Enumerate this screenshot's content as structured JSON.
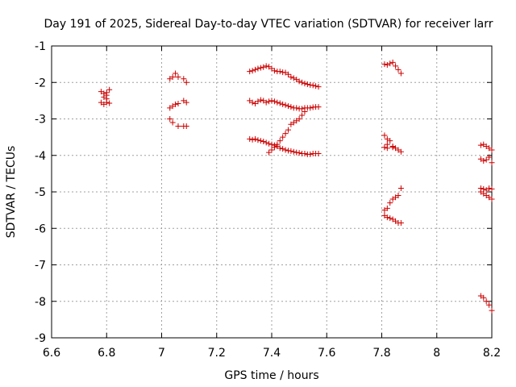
{
  "chart_data": {
    "type": "scatter",
    "title": "Day 191 of 2025, Sidereal Day-to-day VTEC variation (SDTVAR) for receiver larr",
    "xlabel": "GPS time / hours",
    "ylabel": "SDTVAR / TECUs",
    "xlim": [
      6.6,
      8.2
    ],
    "ylim": [
      -9,
      -1
    ],
    "xticks": [
      6.6,
      6.8,
      7,
      7.2,
      7.4,
      7.6,
      7.8,
      8,
      8.2
    ],
    "xtick_labels": [
      "6.6",
      "6.8",
      "7",
      "7.2",
      "7.4",
      "7.6",
      "7.8",
      "8",
      "8.2"
    ],
    "yticks": [
      -9,
      -8,
      -7,
      -6,
      -5,
      -4,
      -3,
      -2,
      -1
    ],
    "ytick_labels": [
      "-9",
      "-8",
      "-7",
      "-6",
      "-5",
      "-4",
      "-3",
      "-2",
      "-1"
    ],
    "grid": true,
    "marker": "+",
    "series": [
      {
        "name": "SDTVAR",
        "color": "#cc0000",
        "points": [
          [
            6.78,
            -2.25
          ],
          [
            6.79,
            -2.3
          ],
          [
            6.8,
            -2.28
          ],
          [
            6.81,
            -2.2
          ],
          [
            6.8,
            -2.35
          ],
          [
            6.79,
            -2.4
          ],
          [
            6.8,
            -2.45
          ],
          [
            6.8,
            -2.55
          ],
          [
            6.78,
            -2.55
          ],
          [
            6.81,
            -2.57
          ],
          [
            6.79,
            -2.6
          ],
          [
            7.03,
            -1.9
          ],
          [
            7.04,
            -1.85
          ],
          [
            7.05,
            -1.75
          ],
          [
            7.06,
            -1.85
          ],
          [
            7.08,
            -1.9
          ],
          [
            7.09,
            -2.0
          ],
          [
            7.03,
            -2.7
          ],
          [
            7.04,
            -2.65
          ],
          [
            7.05,
            -2.6
          ],
          [
            7.06,
            -2.58
          ],
          [
            7.08,
            -2.5
          ],
          [
            7.09,
            -2.55
          ],
          [
            7.03,
            -3.0
          ],
          [
            7.04,
            -3.1
          ],
          [
            7.06,
            -3.2
          ],
          [
            7.08,
            -3.2
          ],
          [
            7.09,
            -3.2
          ],
          [
            7.32,
            -1.7
          ],
          [
            7.33,
            -1.68
          ],
          [
            7.34,
            -1.65
          ],
          [
            7.35,
            -1.62
          ],
          [
            7.36,
            -1.6
          ],
          [
            7.37,
            -1.58
          ],
          [
            7.38,
            -1.55
          ],
          [
            7.39,
            -1.57
          ],
          [
            7.4,
            -1.62
          ],
          [
            7.41,
            -1.68
          ],
          [
            7.42,
            -1.7
          ],
          [
            7.43,
            -1.7
          ],
          [
            7.44,
            -1.72
          ],
          [
            7.45,
            -1.73
          ],
          [
            7.46,
            -1.78
          ],
          [
            7.47,
            -1.85
          ],
          [
            7.48,
            -1.88
          ],
          [
            7.49,
            -1.92
          ],
          [
            7.5,
            -1.97
          ],
          [
            7.51,
            -2.0
          ],
          [
            7.52,
            -2.03
          ],
          [
            7.53,
            -2.05
          ],
          [
            7.54,
            -2.07
          ],
          [
            7.55,
            -2.08
          ],
          [
            7.56,
            -2.1
          ],
          [
            7.57,
            -2.12
          ],
          [
            7.32,
            -2.5
          ],
          [
            7.33,
            -2.55
          ],
          [
            7.34,
            -2.58
          ],
          [
            7.35,
            -2.52
          ],
          [
            7.36,
            -2.48
          ],
          [
            7.37,
            -2.5
          ],
          [
            7.38,
            -2.55
          ],
          [
            7.39,
            -2.52
          ],
          [
            7.4,
            -2.5
          ],
          [
            7.41,
            -2.52
          ],
          [
            7.42,
            -2.55
          ],
          [
            7.43,
            -2.57
          ],
          [
            7.44,
            -2.6
          ],
          [
            7.45,
            -2.62
          ],
          [
            7.46,
            -2.65
          ],
          [
            7.47,
            -2.67
          ],
          [
            7.48,
            -2.7
          ],
          [
            7.49,
            -2.7
          ],
          [
            7.5,
            -2.72
          ],
          [
            7.51,
            -2.72
          ],
          [
            7.52,
            -2.7
          ],
          [
            7.53,
            -2.7
          ],
          [
            7.54,
            -2.7
          ],
          [
            7.55,
            -2.68
          ],
          [
            7.56,
            -2.67
          ],
          [
            7.57,
            -2.67
          ],
          [
            7.32,
            -3.55
          ],
          [
            7.33,
            -3.57
          ],
          [
            7.34,
            -3.55
          ],
          [
            7.35,
            -3.58
          ],
          [
            7.36,
            -3.6
          ],
          [
            7.37,
            -3.62
          ],
          [
            7.38,
            -3.65
          ],
          [
            7.39,
            -3.68
          ],
          [
            7.4,
            -3.7
          ],
          [
            7.41,
            -3.72
          ],
          [
            7.42,
            -3.75
          ],
          [
            7.43,
            -3.8
          ],
          [
            7.44,
            -3.82
          ],
          [
            7.45,
            -3.85
          ],
          [
            7.46,
            -3.87
          ],
          [
            7.47,
            -3.88
          ],
          [
            7.48,
            -3.9
          ],
          [
            7.49,
            -3.92
          ],
          [
            7.5,
            -3.93
          ],
          [
            7.51,
            -3.95
          ],
          [
            7.52,
            -3.95
          ],
          [
            7.53,
            -3.97
          ],
          [
            7.54,
            -3.97
          ],
          [
            7.55,
            -3.95
          ],
          [
            7.56,
            -3.95
          ],
          [
            7.57,
            -3.95
          ],
          [
            7.39,
            -3.92
          ],
          [
            7.4,
            -3.85
          ],
          [
            7.41,
            -3.78
          ],
          [
            7.42,
            -3.7
          ],
          [
            7.43,
            -3.6
          ],
          [
            7.44,
            -3.5
          ],
          [
            7.45,
            -3.4
          ],
          [
            7.46,
            -3.3
          ],
          [
            7.47,
            -3.15
          ],
          [
            7.48,
            -3.1
          ],
          [
            7.49,
            -3.05
          ],
          [
            7.5,
            -3.0
          ],
          [
            7.51,
            -2.9
          ],
          [
            7.52,
            -2.8
          ],
          [
            7.81,
            -1.5
          ],
          [
            7.82,
            -1.52
          ],
          [
            7.83,
            -1.48
          ],
          [
            7.84,
            -1.45
          ],
          [
            7.85,
            -1.55
          ],
          [
            7.86,
            -1.65
          ],
          [
            7.87,
            -1.75
          ],
          [
            7.81,
            -3.45
          ],
          [
            7.82,
            -3.55
          ],
          [
            7.82,
            -3.7
          ],
          [
            7.83,
            -3.6
          ],
          [
            7.84,
            -3.75
          ],
          [
            7.85,
            -3.8
          ],
          [
            7.86,
            -3.85
          ],
          [
            7.87,
            -3.9
          ],
          [
            7.81,
            -3.78
          ],
          [
            7.82,
            -3.8
          ],
          [
            7.84,
            -3.78
          ],
          [
            7.81,
            -5.5
          ],
          [
            7.82,
            -5.45
          ],
          [
            7.83,
            -5.3
          ],
          [
            7.84,
            -5.2
          ],
          [
            7.85,
            -5.15
          ],
          [
            7.86,
            -5.1
          ],
          [
            7.87,
            -4.9
          ],
          [
            7.81,
            -5.65
          ],
          [
            7.82,
            -5.7
          ],
          [
            7.83,
            -5.72
          ],
          [
            7.84,
            -5.75
          ],
          [
            7.85,
            -5.8
          ],
          [
            7.86,
            -5.85
          ],
          [
            7.87,
            -5.85
          ],
          [
            8.16,
            -3.72
          ],
          [
            8.17,
            -3.7
          ],
          [
            8.18,
            -3.75
          ],
          [
            8.19,
            -3.8
          ],
          [
            8.2,
            -3.85
          ],
          [
            8.16,
            -4.1
          ],
          [
            8.17,
            -4.15
          ],
          [
            8.18,
            -4.12
          ],
          [
            8.19,
            -4.05
          ],
          [
            8.2,
            -4.2
          ],
          [
            8.16,
            -4.9
          ],
          [
            8.17,
            -4.92
          ],
          [
            8.18,
            -4.95
          ],
          [
            8.19,
            -4.9
          ],
          [
            8.2,
            -4.92
          ],
          [
            8.16,
            -5.0
          ],
          [
            8.17,
            -5.05
          ],
          [
            8.18,
            -5.1
          ],
          [
            8.19,
            -5.15
          ],
          [
            8.2,
            -5.2
          ],
          [
            8.16,
            -7.85
          ],
          [
            8.17,
            -7.9
          ],
          [
            8.18,
            -8.0
          ],
          [
            8.19,
            -8.1
          ],
          [
            8.2,
            -8.25
          ]
        ]
      }
    ]
  }
}
